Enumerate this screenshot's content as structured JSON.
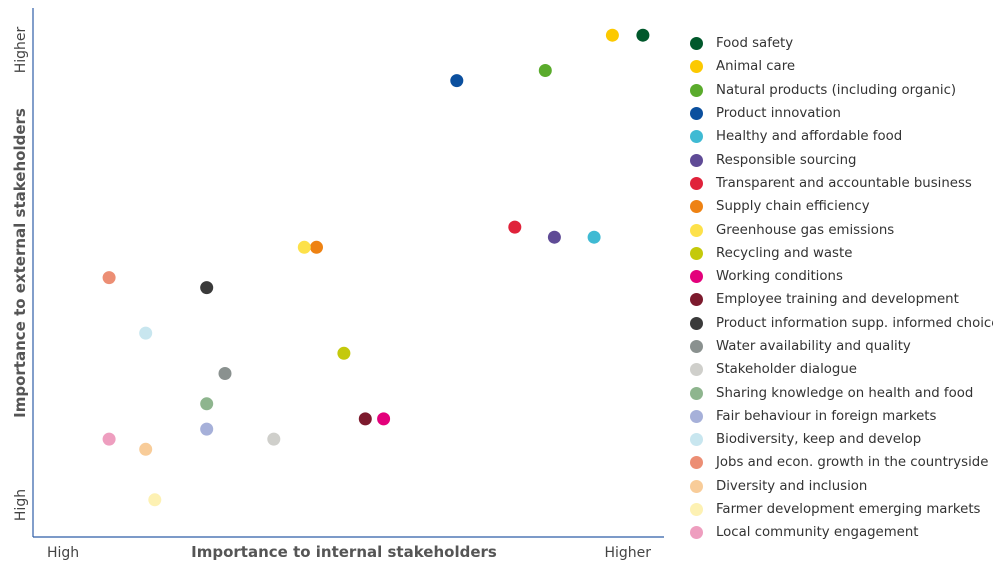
{
  "chart_data": {
    "type": "scatter",
    "xlabel": "Importance to internal stakeholders",
    "ylabel": "Importance to external stakeholders",
    "x_tick_low": "High",
    "x_tick_high": "Higher",
    "y_tick_low": "High",
    "y_tick_high": "Higher",
    "xlim": [
      0,
      100
    ],
    "ylim": [
      0,
      100
    ],
    "legend_position": "right",
    "grid": false,
    "axis_color": "#2f5ea8",
    "series": [
      {
        "name": "Food safety",
        "color": "#00582b",
        "x": 98.5,
        "y": 97
      },
      {
        "name": "Animal care",
        "color": "#fcc900",
        "x": 93.5,
        "y": 97
      },
      {
        "name": "Natural products (including organic)",
        "color": "#5aab2c",
        "x": 82.5,
        "y": 90
      },
      {
        "name": "Product innovation",
        "color": "#0b4f9e",
        "x": 68,
        "y": 88
      },
      {
        "name": "Healthy and affordable food",
        "color": "#3fbad3",
        "x": 90.5,
        "y": 57
      },
      {
        "name": "Responsible sourcing",
        "color": "#5f4b96",
        "x": 84,
        "y": 57
      },
      {
        "name": "Transparent and accountable business",
        "color": "#e0223a",
        "x": 77.5,
        "y": 59
      },
      {
        "name": "Supply chain efficiency",
        "color": "#ee8213",
        "x": 45,
        "y": 55
      },
      {
        "name": "Greenhouse gas emissions",
        "color": "#fde14a",
        "x": 43,
        "y": 55
      },
      {
        "name": "Recycling and waste",
        "color": "#c4c90b",
        "x": 49.5,
        "y": 34
      },
      {
        "name": "Working conditions",
        "color": "#e3007b",
        "x": 56,
        "y": 21
      },
      {
        "name": "Employee training and development",
        "color": "#7c1a2d",
        "x": 53,
        "y": 21
      },
      {
        "name": "Product information supp. informed choices",
        "color": "#3a3a3a",
        "x": 27,
        "y": 47
      },
      {
        "name": "Water availability and quality",
        "color": "#8a918f",
        "x": 30,
        "y": 30
      },
      {
        "name": "Stakeholder dialogue",
        "color": "#cfcfcb",
        "x": 38,
        "y": 17
      },
      {
        "name": "Sharing knowledge on health and food",
        "color": "#8eb58e",
        "x": 27,
        "y": 24
      },
      {
        "name": "Fair behaviour in foreign markets",
        "color": "#a6b0d9",
        "x": 27,
        "y": 19
      },
      {
        "name": "Biodiversity, keep and develop",
        "color": "#c8e6ef",
        "x": 17,
        "y": 38
      },
      {
        "name": "Jobs and econ. growth in the countryside",
        "color": "#ec8e74",
        "x": 11,
        "y": 49
      },
      {
        "name": "Diversity and inclusion",
        "color": "#f8cc99",
        "x": 17,
        "y": 15
      },
      {
        "name": "Farmer development emerging markets",
        "color": "#fdf1b3",
        "x": 18.5,
        "y": 5
      },
      {
        "name": "Local community engagement",
        "color": "#ee9ebf",
        "x": 11,
        "y": 17
      }
    ]
  }
}
